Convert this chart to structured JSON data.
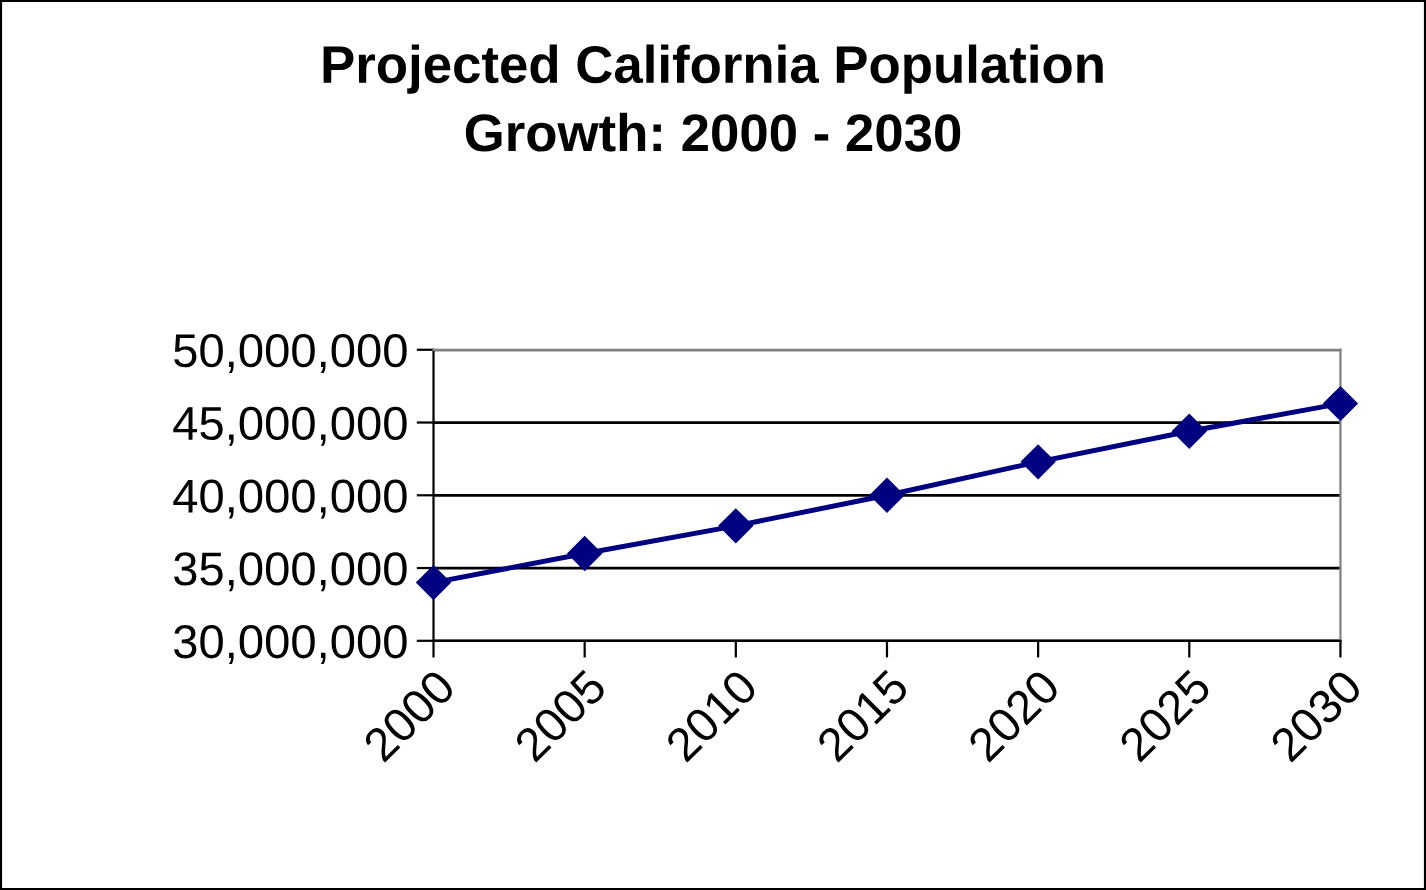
{
  "chart_data": {
    "type": "line",
    "title": "Projected California Population\nGrowth: 2000 - 2030",
    "categories": [
      "2000",
      "2005",
      "2010",
      "2015",
      "2020",
      "2025",
      "2030"
    ],
    "series": [
      {
        "color": "#000080",
        "values": [
          34000000,
          36000000,
          37900000,
          40000000,
          42300000,
          44400000,
          46300000
        ]
      }
    ],
    "ylim": [
      30000000,
      50000000
    ],
    "yticks": [
      {
        "value": 30000000,
        "label": "30,000,000"
      },
      {
        "value": 35000000,
        "label": "35,000,000"
      },
      {
        "value": 40000000,
        "label": "40,000,000"
      },
      {
        "value": 45000000,
        "label": "45,000,000"
      },
      {
        "value": 50000000,
        "label": "50,000,000"
      }
    ],
    "grid": "y",
    "marker": "diamond",
    "line_style": "solid",
    "legend": false
  }
}
